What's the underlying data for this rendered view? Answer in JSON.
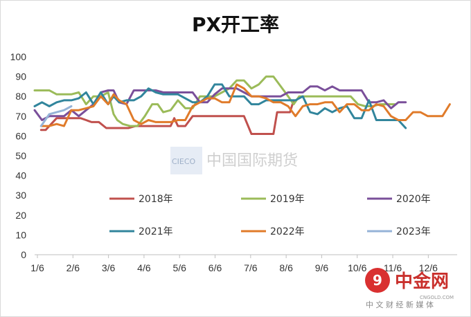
{
  "chart_data": {
    "type": "line",
    "title": "PX开工率",
    "xlabel": "",
    "ylabel": "",
    "ylim": [
      0,
      100
    ],
    "yticks": [
      0,
      10,
      20,
      30,
      40,
      50,
      60,
      70,
      80,
      90,
      100
    ],
    "xticks": [
      "1/6",
      "2/6",
      "3/6",
      "4/6",
      "5/6",
      "6/6",
      "7/6",
      "8/6",
      "9/6",
      "10/6",
      "11/6",
      "12/6"
    ],
    "grid": false,
    "legend_position": "bottom",
    "series": [
      {
        "name": "2018年",
        "color": "#c0504d",
        "points": [
          [
            0.35,
            63
          ],
          [
            0.6,
            63
          ],
          [
            0.9,
            66
          ],
          [
            1.2,
            69
          ],
          [
            1.6,
            69
          ],
          [
            2,
            69
          ],
          [
            2.5,
            69
          ],
          [
            2.8,
            68
          ],
          [
            3.1,
            67
          ],
          [
            3.5,
            67
          ],
          [
            3.9,
            64
          ],
          [
            4.3,
            64
          ],
          [
            4.7,
            64
          ],
          [
            5.1,
            64
          ],
          [
            5.5,
            65
          ],
          [
            6,
            65
          ],
          [
            6.5,
            65
          ],
          [
            7.0,
            65
          ],
          [
            7.4,
            65
          ],
          [
            7.6,
            69
          ],
          [
            7.8,
            65
          ],
          [
            8.2,
            65
          ],
          [
            8.6,
            70
          ],
          [
            9.0,
            70
          ],
          [
            9.5,
            70
          ],
          [
            10,
            70
          ],
          [
            10.5,
            70
          ],
          [
            11,
            70
          ],
          [
            11.4,
            70
          ],
          [
            11.8,
            61
          ],
          [
            12.2,
            61
          ],
          [
            12.6,
            61
          ],
          [
            13.0,
            61
          ],
          [
            13.2,
            72
          ],
          [
            13.6,
            72
          ],
          [
            13.9,
            72
          ],
          [
            14.1,
            78
          ]
        ]
      },
      {
        "name": "2019年",
        "color": "#9bbb59",
        "points": [
          [
            0,
            83
          ],
          [
            0.4,
            83
          ],
          [
            0.8,
            83
          ],
          [
            1.2,
            81
          ],
          [
            1.6,
            81
          ],
          [
            2,
            81
          ],
          [
            2.4,
            82
          ],
          [
            2.8,
            76
          ],
          [
            3.2,
            80
          ],
          [
            3.6,
            80
          ],
          [
            4.0,
            82
          ],
          [
            4.3,
            71
          ],
          [
            4.5,
            68
          ],
          [
            4.8,
            66
          ],
          [
            5.2,
            65
          ],
          [
            5.6,
            65
          ],
          [
            6.0,
            70
          ],
          [
            6.4,
            76
          ],
          [
            6.7,
            76
          ],
          [
            7.0,
            72
          ],
          [
            7.4,
            73
          ],
          [
            7.8,
            78
          ],
          [
            8.2,
            74
          ],
          [
            8.6,
            74
          ],
          [
            9.0,
            80
          ],
          [
            9.4,
            80
          ],
          [
            9.8,
            80
          ],
          [
            10.2,
            82
          ],
          [
            10.6,
            84
          ],
          [
            11.0,
            88
          ],
          [
            11.4,
            88
          ],
          [
            11.8,
            84
          ],
          [
            12.2,
            86
          ],
          [
            12.6,
            90
          ],
          [
            13.0,
            90
          ],
          [
            13.4,
            85
          ],
          [
            13.8,
            80
          ],
          [
            14.1,
            76
          ],
          [
            14.4,
            80
          ],
          [
            14.8,
            80
          ],
          [
            15.2,
            80
          ],
          [
            15.6,
            80
          ],
          [
            16.0,
            80
          ],
          [
            16.4,
            80
          ],
          [
            16.8,
            80
          ],
          [
            17.2,
            80
          ],
          [
            17.6,
            76
          ],
          [
            18.0,
            75
          ],
          [
            18.4,
            75
          ],
          [
            18.8,
            76
          ],
          [
            19.2,
            76
          ],
          [
            19.6,
            76
          ]
        ]
      },
      {
        "name": "2020年",
        "color": "#7a4f9a",
        "points": [
          [
            0,
            73
          ],
          [
            0.4,
            68
          ],
          [
            0.8,
            70
          ],
          [
            1.2,
            70
          ],
          [
            1.6,
            70
          ],
          [
            2,
            73
          ],
          [
            2.4,
            70
          ],
          [
            2.8,
            73
          ],
          [
            3.2,
            76
          ],
          [
            3.6,
            82
          ],
          [
            4.0,
            83
          ],
          [
            4.3,
            83
          ],
          [
            4.6,
            77
          ],
          [
            5.0,
            76
          ],
          [
            5.4,
            83
          ],
          [
            5.8,
            83
          ],
          [
            6.2,
            83
          ],
          [
            6.6,
            83
          ],
          [
            7.0,
            82
          ],
          [
            7.4,
            82
          ],
          [
            7.8,
            82
          ],
          [
            8.2,
            82
          ],
          [
            8.6,
            82
          ],
          [
            9.0,
            77
          ],
          [
            9.4,
            77
          ],
          [
            9.8,
            81
          ],
          [
            10.2,
            84
          ],
          [
            10.6,
            84
          ],
          [
            11.0,
            84
          ],
          [
            11.4,
            82
          ],
          [
            11.8,
            80
          ],
          [
            12.2,
            80
          ],
          [
            12.6,
            80
          ],
          [
            13.0,
            80
          ],
          [
            13.4,
            80
          ],
          [
            13.8,
            82
          ],
          [
            14.2,
            82
          ],
          [
            14.6,
            82
          ],
          [
            15.0,
            85
          ],
          [
            15.4,
            85
          ],
          [
            15.8,
            83
          ],
          [
            16.2,
            85
          ],
          [
            16.6,
            83
          ],
          [
            17.0,
            83
          ],
          [
            17.4,
            83
          ],
          [
            17.8,
            83
          ],
          [
            18.2,
            77
          ],
          [
            18.6,
            77
          ],
          [
            19.0,
            78
          ],
          [
            19.4,
            74
          ],
          [
            19.8,
            77
          ],
          [
            20.2,
            77
          ]
        ]
      },
      {
        "name": "2021年",
        "color": "#31859c",
        "points": [
          [
            0,
            75
          ],
          [
            0.4,
            77
          ],
          [
            0.8,
            75
          ],
          [
            1.2,
            77
          ],
          [
            1.6,
            78
          ],
          [
            2,
            78
          ],
          [
            2.4,
            79
          ],
          [
            2.8,
            82
          ],
          [
            3.2,
            76
          ],
          [
            3.6,
            82
          ],
          [
            4.0,
            76
          ],
          [
            4.3,
            80
          ],
          [
            4.6,
            77
          ],
          [
            5.0,
            78
          ],
          [
            5.4,
            78
          ],
          [
            5.8,
            80
          ],
          [
            6.2,
            84
          ],
          [
            6.6,
            82
          ],
          [
            7.0,
            81
          ],
          [
            7.4,
            81
          ],
          [
            7.8,
            81
          ],
          [
            8.2,
            79
          ],
          [
            8.6,
            77
          ],
          [
            9.0,
            77
          ],
          [
            9.4,
            80
          ],
          [
            9.8,
            86
          ],
          [
            10.2,
            86
          ],
          [
            10.6,
            80
          ],
          [
            11.0,
            80
          ],
          [
            11.4,
            80
          ],
          [
            11.8,
            76
          ],
          [
            12.2,
            76
          ],
          [
            12.6,
            78
          ],
          [
            13.0,
            78
          ],
          [
            13.4,
            78
          ],
          [
            13.8,
            78
          ],
          [
            14.2,
            78
          ],
          [
            14.6,
            80
          ],
          [
            15.0,
            72
          ],
          [
            15.4,
            71
          ],
          [
            15.8,
            74
          ],
          [
            16.2,
            72
          ],
          [
            16.6,
            74
          ],
          [
            17.0,
            75
          ],
          [
            17.4,
            69
          ],
          [
            17.8,
            69
          ],
          [
            18.2,
            78
          ],
          [
            18.6,
            68
          ],
          [
            19.0,
            68
          ],
          [
            19.4,
            68
          ],
          [
            19.8,
            68
          ],
          [
            20.2,
            64
          ]
        ]
      },
      {
        "name": "2022年",
        "color": "#e07b2a",
        "points": [
          [
            0.35,
            65
          ],
          [
            0.8,
            65
          ],
          [
            1.2,
            66
          ],
          [
            1.6,
            65
          ],
          [
            2,
            73
          ],
          [
            2.4,
            73
          ],
          [
            2.8,
            74
          ],
          [
            3.2,
            75
          ],
          [
            3.6,
            80
          ],
          [
            4.0,
            76
          ],
          [
            4.3,
            81
          ],
          [
            4.6,
            78
          ],
          [
            5.0,
            76
          ],
          [
            5.4,
            68
          ],
          [
            5.8,
            66
          ],
          [
            6.2,
            68
          ],
          [
            6.6,
            67
          ],
          [
            7.0,
            67
          ],
          [
            7.4,
            67
          ],
          [
            7.8,
            68
          ],
          [
            8.2,
            68
          ],
          [
            8.6,
            75
          ],
          [
            9.0,
            77
          ],
          [
            9.4,
            79
          ],
          [
            9.8,
            79
          ],
          [
            10.2,
            77
          ],
          [
            10.6,
            77
          ],
          [
            11.0,
            86
          ],
          [
            11.4,
            84
          ],
          [
            11.8,
            80
          ],
          [
            12.2,
            80
          ],
          [
            12.6,
            79
          ],
          [
            13.0,
            77
          ],
          [
            13.4,
            77
          ],
          [
            13.8,
            75
          ],
          [
            14.2,
            70
          ],
          [
            14.6,
            75
          ],
          [
            15.0,
            76
          ],
          [
            15.4,
            76
          ],
          [
            15.8,
            77
          ],
          [
            16.2,
            77
          ],
          [
            16.6,
            72
          ],
          [
            17.0,
            76
          ],
          [
            17.4,
            76
          ],
          [
            17.8,
            73
          ],
          [
            18.2,
            73
          ],
          [
            18.6,
            76
          ],
          [
            19.0,
            75
          ],
          [
            19.4,
            70
          ],
          [
            19.8,
            68
          ],
          [
            20.2,
            68
          ],
          [
            20.6,
            72
          ],
          [
            21.0,
            72
          ],
          [
            21.4,
            70
          ],
          [
            21.8,
            70
          ],
          [
            22.2,
            70
          ],
          [
            22.6,
            76
          ]
        ]
      },
      {
        "name": "2023年",
        "color": "#95b3d7",
        "points": [
          [
            0.35,
            65
          ],
          [
            0.8,
            71
          ],
          [
            1.2,
            72
          ],
          [
            1.6,
            73
          ],
          [
            2,
            75
          ]
        ]
      }
    ],
    "annotations": [
      "CIECO",
      "中国国际期货"
    ]
  },
  "watermark": {
    "brand": "中金网",
    "domain": "CNGOLD.COM",
    "tagline": "中 文 财 经 新 媒 体"
  }
}
